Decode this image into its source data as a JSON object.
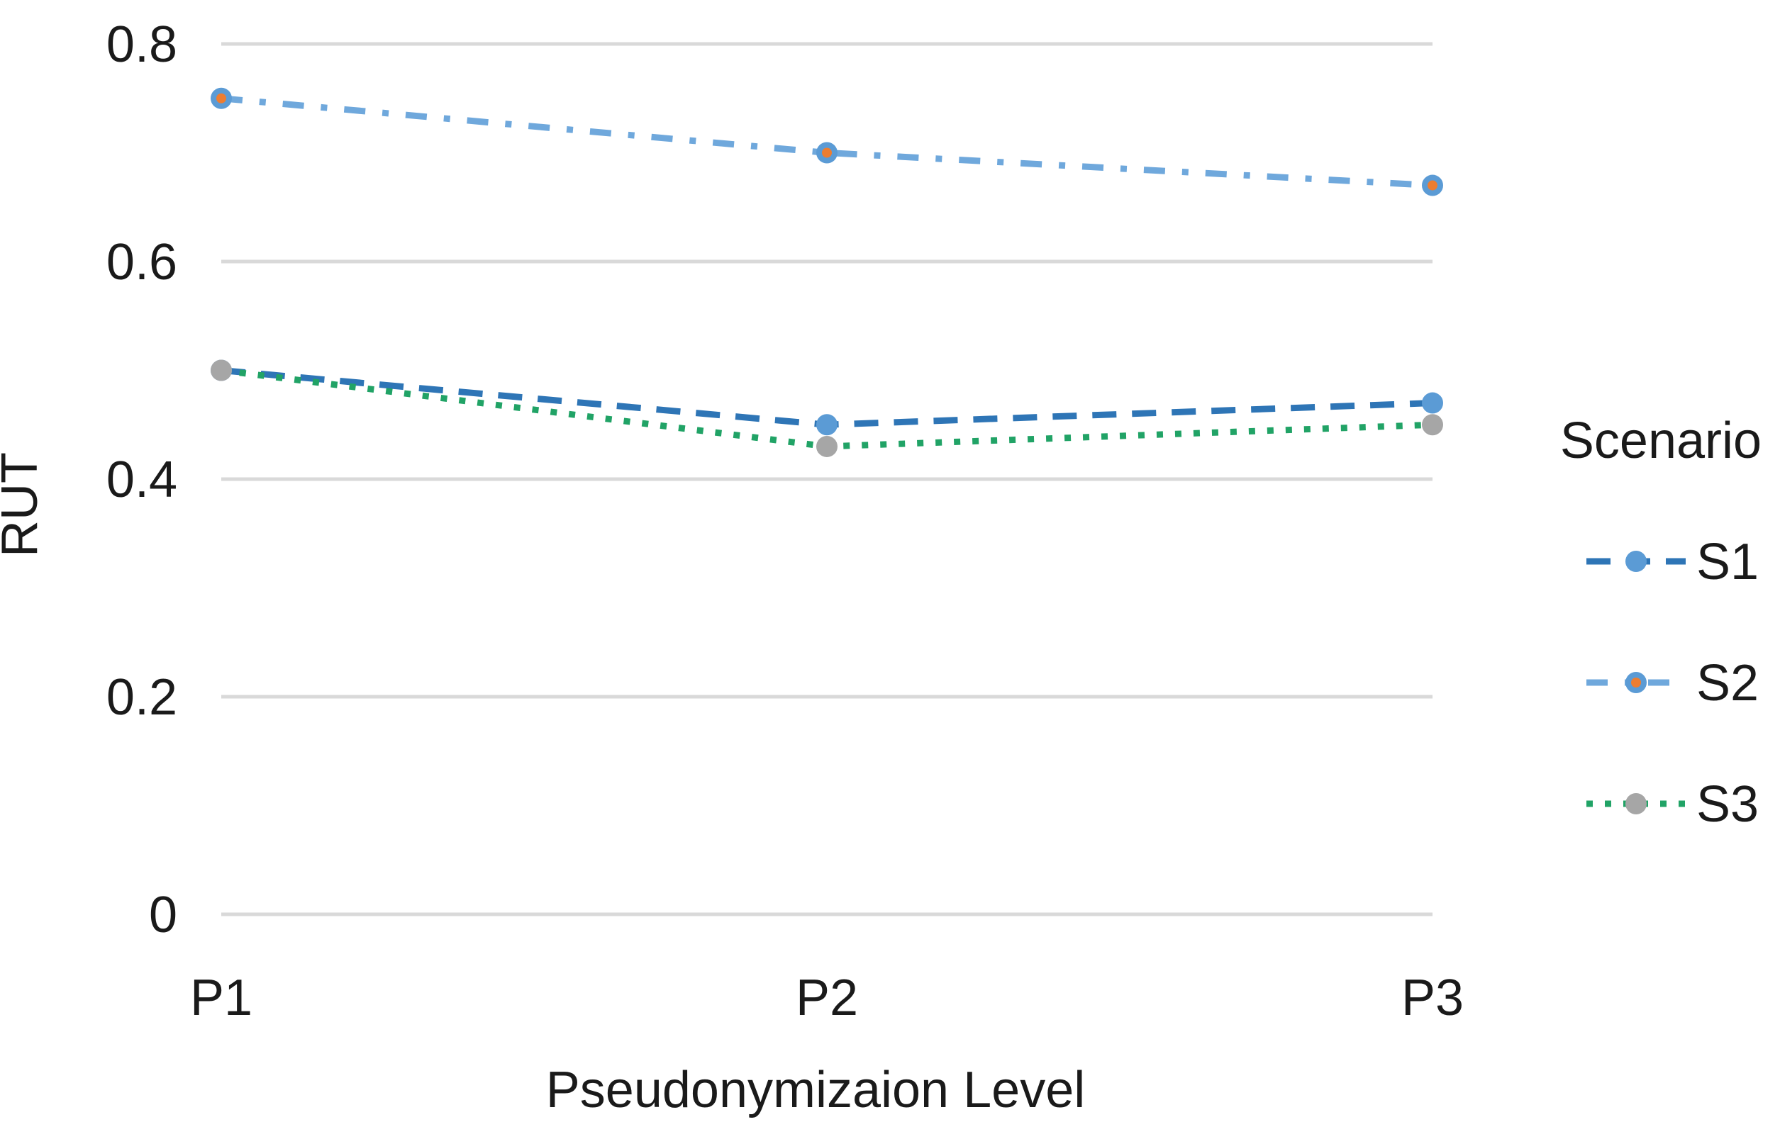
{
  "chart_data": {
    "type": "line",
    "title": "",
    "xlabel": "Pseudonymizaion Level",
    "ylabel": "RUT",
    "categories": [
      "P1",
      "P2",
      "P3"
    ],
    "ylim": [
      0,
      0.8
    ],
    "yticks": [
      0,
      0.2,
      0.4,
      0.6,
      0.8
    ],
    "ytick_labels": [
      "0",
      "0.2",
      "0.4",
      "0.6",
      "0.8"
    ],
    "grid": "horizontal-only",
    "legend": {
      "title": "Scenario",
      "position": "right-center"
    },
    "series": [
      {
        "name": "S1",
        "values": [
          0.5,
          0.45,
          0.47
        ],
        "line_style": "dashed",
        "line_color": "#2E75B6",
        "marker": "circle",
        "marker_color": "#5B9BD5",
        "marker_inner_color": ""
      },
      {
        "name": "S2",
        "values": [
          0.75,
          0.7,
          0.67
        ],
        "line_style": "dash-dot",
        "line_color": "#6FA8DC",
        "marker": "circle-with-dot",
        "marker_color": "#5B9BD5",
        "marker_inner_color": "#ED7D31"
      },
      {
        "name": "S3",
        "values": [
          0.5,
          0.43,
          0.45
        ],
        "line_style": "dotted",
        "line_color": "#21A366",
        "marker": "circle",
        "marker_color": "#A6A6A6",
        "marker_inner_color": ""
      }
    ],
    "colors": {
      "grid": "#D9D9D9",
      "text": "#1A1A1A",
      "background": "#FFFFFF"
    }
  }
}
